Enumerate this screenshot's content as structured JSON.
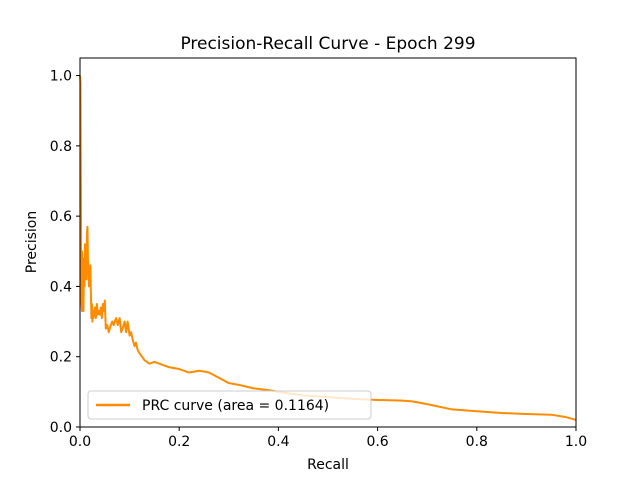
{
  "chart_data": {
    "type": "line",
    "title": "Precision-Recall Curve - Epoch 299",
    "xlabel": "Recall",
    "ylabel": "Precision",
    "xlim": [
      0.0,
      1.0
    ],
    "ylim": [
      0.0,
      1.05
    ],
    "xticks": [
      "0.0",
      "0.2",
      "0.4",
      "0.6",
      "0.8",
      "1.0"
    ],
    "yticks": [
      "0.0",
      "0.2",
      "0.4",
      "0.6",
      "0.8",
      "1.0"
    ],
    "grid": false,
    "legend_position": "lower-left",
    "series": [
      {
        "name": "PRC curve (area = 0.1164)",
        "color": "#ff8c00",
        "x": [
          0.0,
          0.001,
          0.002,
          0.002,
          0.003,
          0.004,
          0.004,
          0.005,
          0.006,
          0.007,
          0.008,
          0.009,
          0.01,
          0.011,
          0.012,
          0.013,
          0.014,
          0.015,
          0.016,
          0.017,
          0.018,
          0.019,
          0.02,
          0.021,
          0.022,
          0.023,
          0.024,
          0.025,
          0.026,
          0.027,
          0.028,
          0.03,
          0.032,
          0.034,
          0.036,
          0.038,
          0.04,
          0.042,
          0.044,
          0.046,
          0.048,
          0.05,
          0.052,
          0.055,
          0.058,
          0.06,
          0.062,
          0.065,
          0.068,
          0.07,
          0.073,
          0.076,
          0.08,
          0.083,
          0.086,
          0.09,
          0.093,
          0.096,
          0.1,
          0.103,
          0.106,
          0.11,
          0.113,
          0.116,
          0.12,
          0.125,
          0.13,
          0.14,
          0.15,
          0.16,
          0.18,
          0.2,
          0.22,
          0.24,
          0.25,
          0.26,
          0.28,
          0.3,
          0.32,
          0.35,
          0.38,
          0.4,
          0.45,
          0.5,
          0.55,
          0.6,
          0.65,
          0.67,
          0.7,
          0.75,
          0.8,
          0.85,
          0.9,
          0.95,
          0.98,
          1.0
        ],
        "y": [
          1.0,
          0.98,
          0.6,
          0.4,
          0.35,
          0.33,
          0.5,
          0.45,
          0.38,
          0.33,
          0.48,
          0.4,
          0.52,
          0.45,
          0.5,
          0.42,
          0.55,
          0.57,
          0.48,
          0.45,
          0.4,
          0.44,
          0.42,
          0.46,
          0.38,
          0.31,
          0.35,
          0.3,
          0.33,
          0.31,
          0.32,
          0.34,
          0.31,
          0.35,
          0.32,
          0.33,
          0.32,
          0.34,
          0.31,
          0.35,
          0.33,
          0.36,
          0.28,
          0.29,
          0.27,
          0.28,
          0.29,
          0.3,
          0.29,
          0.3,
          0.31,
          0.29,
          0.31,
          0.27,
          0.28,
          0.3,
          0.27,
          0.3,
          0.26,
          0.27,
          0.25,
          0.23,
          0.24,
          0.22,
          0.21,
          0.2,
          0.19,
          0.18,
          0.185,
          0.18,
          0.17,
          0.165,
          0.155,
          0.16,
          0.158,
          0.155,
          0.14,
          0.125,
          0.12,
          0.11,
          0.105,
          0.1,
          0.09,
          0.085,
          0.08,
          0.077,
          0.075,
          0.073,
          0.065,
          0.05,
          0.045,
          0.04,
          0.037,
          0.035,
          0.028,
          0.02
        ]
      }
    ]
  }
}
